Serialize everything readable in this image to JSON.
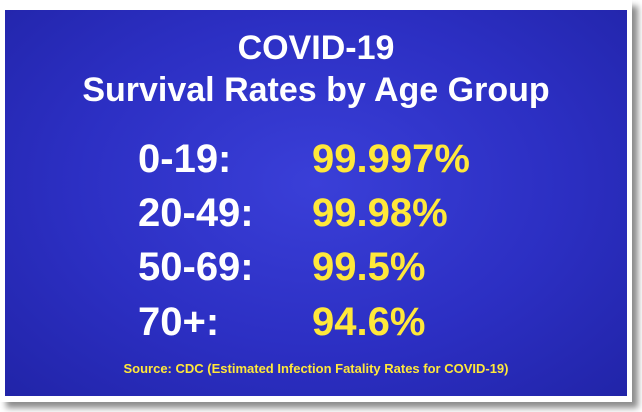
{
  "title": {
    "line1": "COVID-19",
    "line2": "Survival Rates by Age Group"
  },
  "rows": [
    {
      "age": "0-19:",
      "rate": "99.997%"
    },
    {
      "age": "20-49:",
      "rate": "99.98%"
    },
    {
      "age": "50-69:",
      "rate": "99.5%"
    },
    {
      "age": "70+:",
      "rate": "94.6%"
    }
  ],
  "source": "Source: CDC (Estimated Infection Fatality Rates for COVID-19)",
  "colors": {
    "background": "#2c2fc3",
    "title_text": "#ffffff",
    "rate_text": "#ffe83a"
  }
}
